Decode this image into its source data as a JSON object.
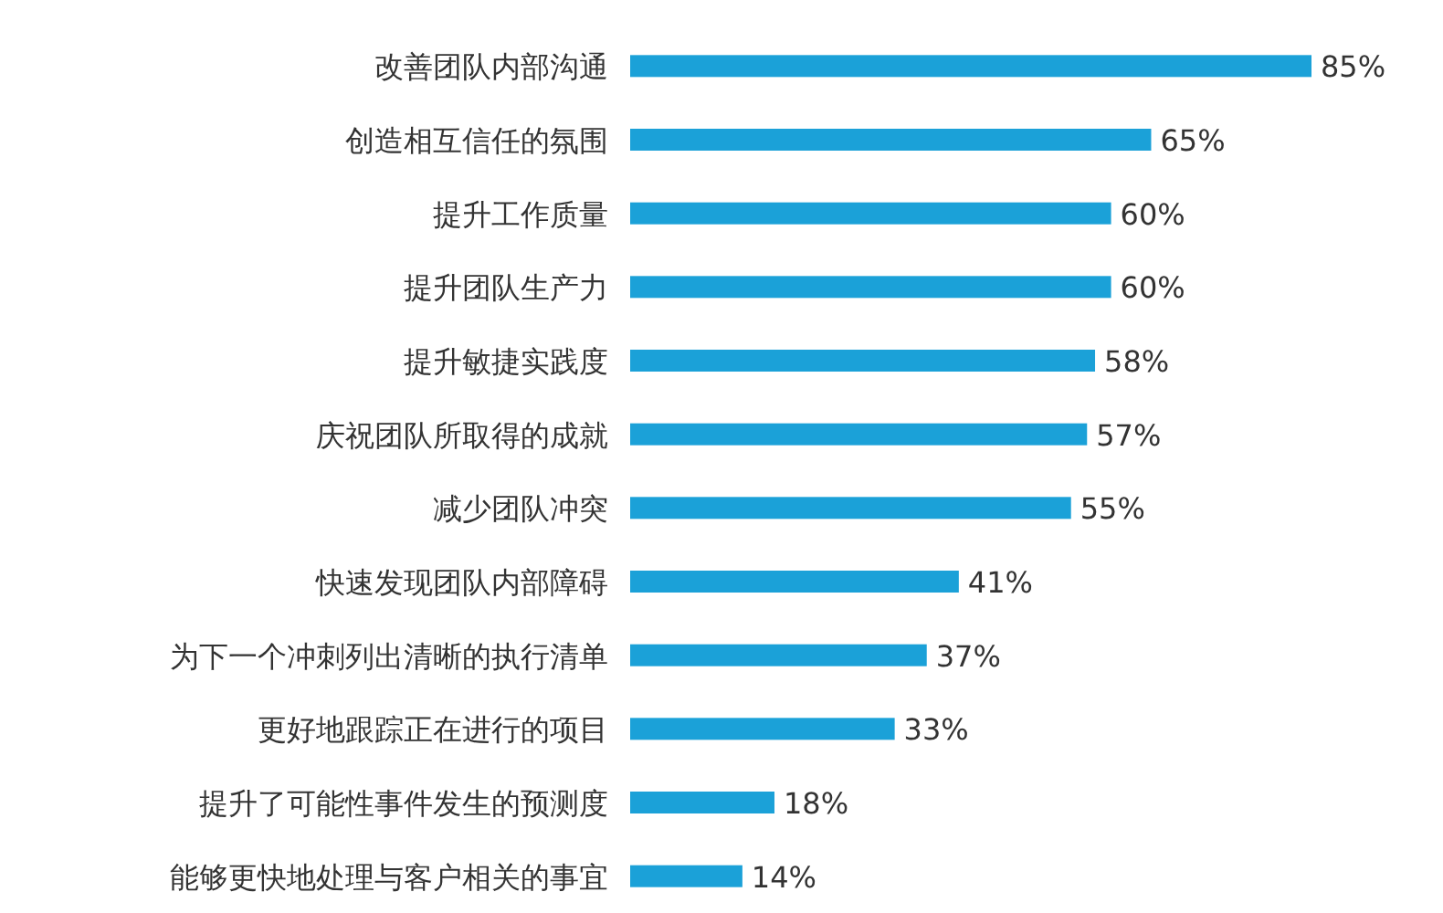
{
  "chart_data": {
    "type": "bar",
    "orientation": "horizontal",
    "color": "#1ba1d8",
    "categories": [
      "改善团队内部沟通",
      "创造相互信任的氛围",
      "提升工作质量",
      "提升团队生产力",
      "提升敏捷实践度",
      "庆祝团队所取得的成就",
      "减少团队冲突",
      "快速发现团队内部障碍",
      "为下一个冲刺列出清晰的执行清单",
      "更好地跟踪正在进行的项目",
      "提升了可能性事件发生的预测度",
      "能够更快地处理与客户相关的事宜"
    ],
    "values": [
      85,
      65,
      60,
      60,
      58,
      57,
      55,
      41,
      37,
      33,
      18,
      14
    ],
    "value_labels": [
      "85%",
      "65%",
      "60%",
      "60%",
      "58%",
      "57%",
      "55%",
      "41%",
      "37%",
      "33%",
      "18%",
      "14%"
    ]
  }
}
